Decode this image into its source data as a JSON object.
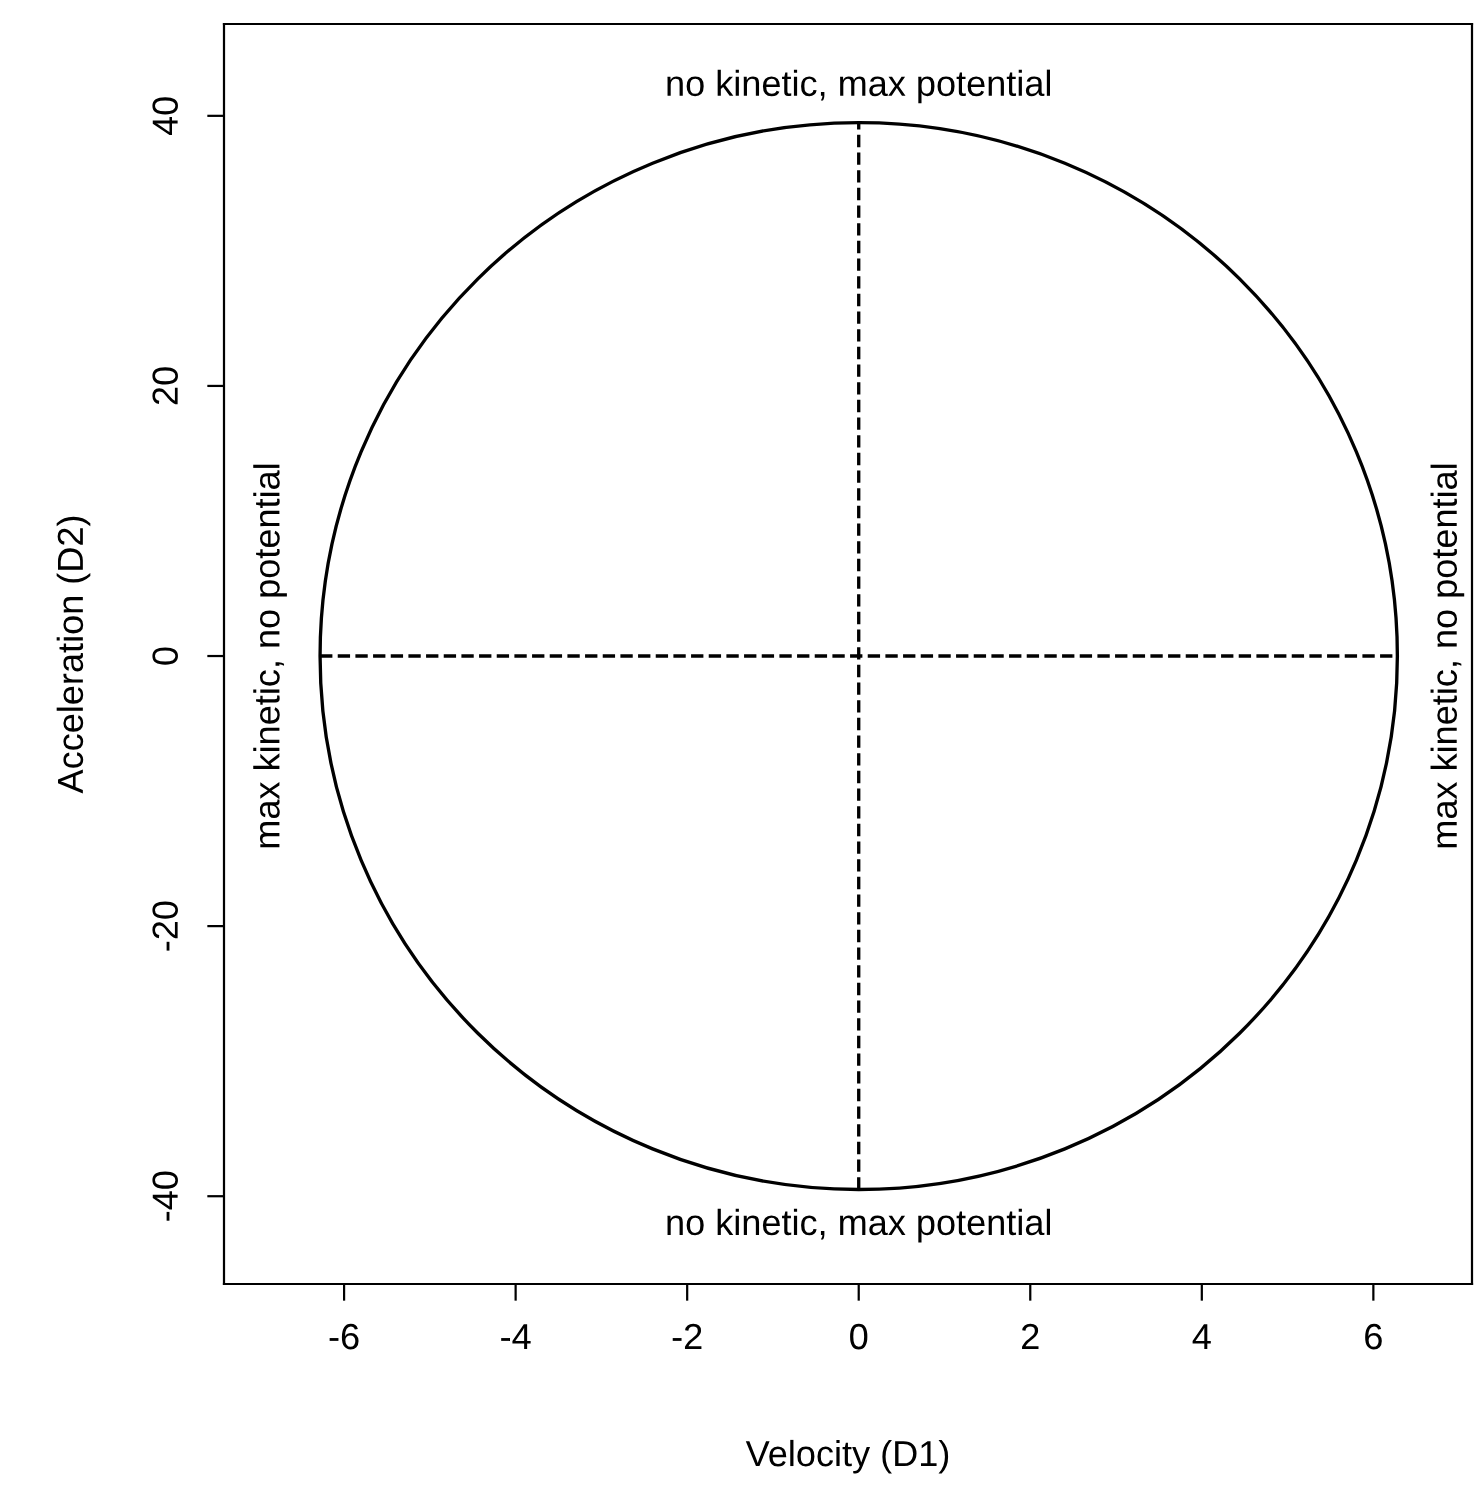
{
  "chart_data": {
    "type": "line",
    "xlabel": "Velocity (D1)",
    "ylabel": "Acceleration (D2)",
    "xlim": [
      -7.4,
      7.15
    ],
    "ylim": [
      -46.5,
      46.8
    ],
    "xticks": [
      -6,
      -4,
      -2,
      0,
      2,
      4,
      6
    ],
    "yticks": [
      -40,
      -20,
      0,
      20,
      40
    ],
    "grid": false,
    "legend": false,
    "series": [
      {
        "color": "#000000",
        "line_style": "dashed",
        "x": [
          -6.28,
          0,
          6.28
        ],
        "values": [
          0,
          0,
          0
        ]
      },
      {
        "color": "#000000",
        "line_style": "dashed",
        "x": [
          0,
          0
        ],
        "values": [
          -39.5,
          39.5
        ]
      }
    ],
    "annotations": [
      {
        "text": "no kinetic, max potential",
        "x": 0,
        "y": 39.5
      },
      {
        "text": "no kinetic, max potential",
        "x": 0,
        "y": -39.5
      },
      {
        "text": "max kinetic, no potential",
        "x": -6.28,
        "y": 0
      },
      {
        "text": "max kinetic, no potential",
        "x": 6.28,
        "y": 0
      }
    ]
  }
}
